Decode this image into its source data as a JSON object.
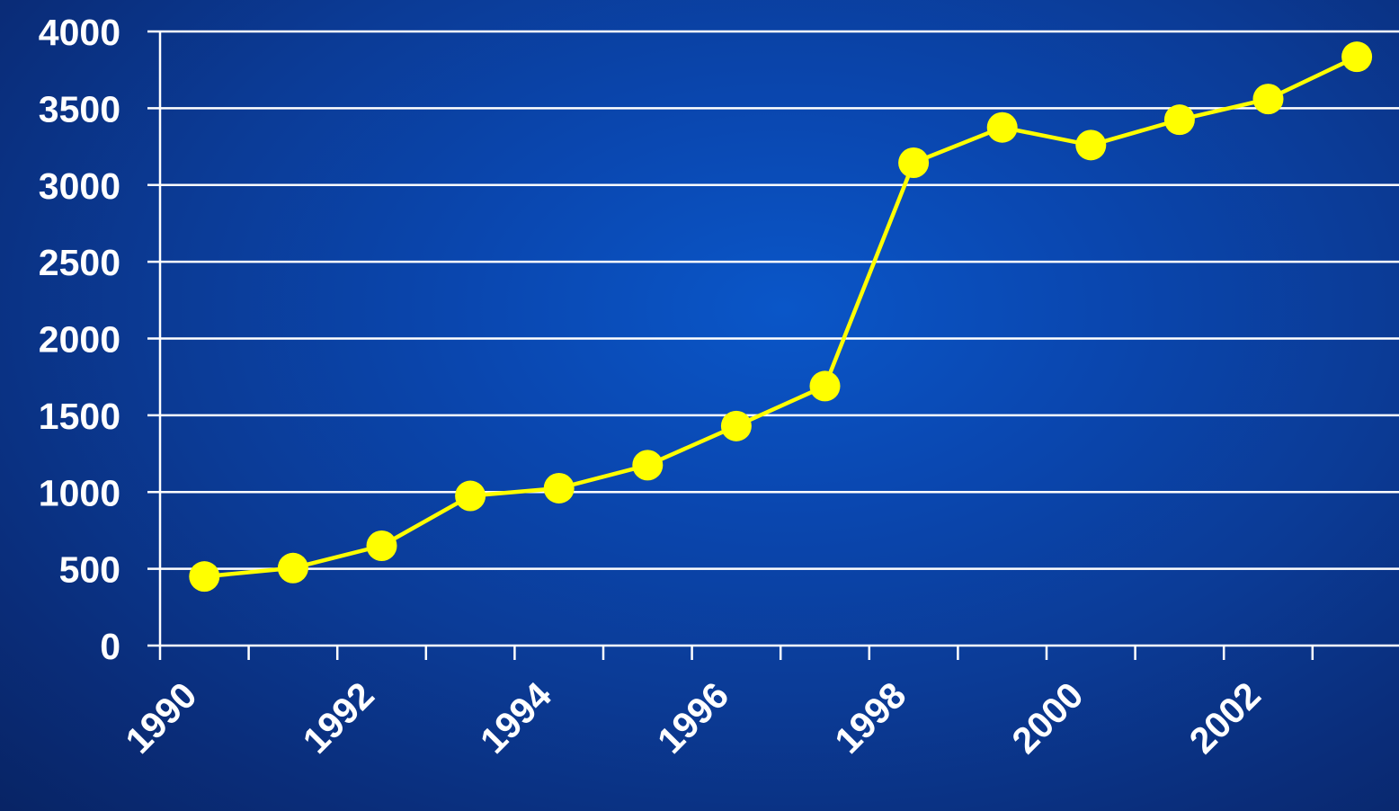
{
  "chart_data": {
    "type": "line",
    "title": "",
    "xlabel": "",
    "ylabel": "",
    "x": [
      1990,
      1991,
      1992,
      1993,
      1994,
      1995,
      1996,
      1997,
      1998,
      1999,
      2000,
      2001,
      2002,
      2003
    ],
    "series": [
      {
        "values": [
          450,
          505,
          650,
          975,
          1025,
          1175,
          1430,
          1690,
          3145,
          3375,
          3260,
          3425,
          3560,
          3835
        ]
      }
    ],
    "ylim": [
      0,
      4000
    ],
    "yticks": [
      "0",
      "500",
      "1000",
      "1500",
      "2000",
      "2500",
      "3000",
      "3500",
      "4000"
    ],
    "xtick_labels": [
      "1990",
      "1992",
      "1994",
      "1996",
      "1998",
      "2000",
      "2002"
    ],
    "grid": "horizontal",
    "legend": "none",
    "colors": {
      "line": "#ffff00",
      "marker": "#ffff00",
      "grid": "#ffffff",
      "text": "#ffffff",
      "background": "#0a47b0"
    }
  }
}
